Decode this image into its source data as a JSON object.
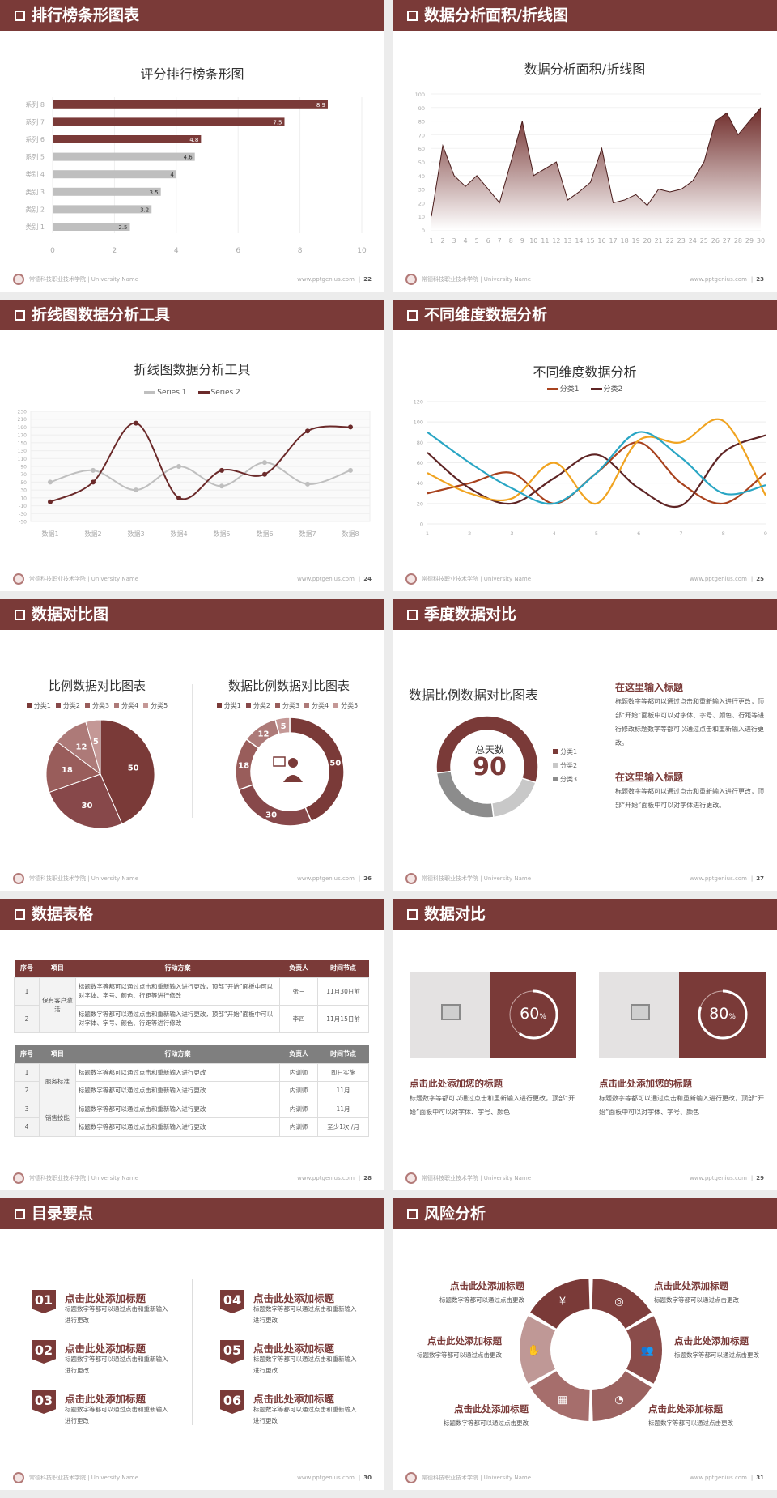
{
  "footer": {
    "school": "常德科技职业技术学院 | University Name",
    "site": "www.pptgenius.com",
    "sep": "|"
  },
  "colors": {
    "primary": "#7a3a38",
    "gray": "#bfbfbf",
    "light_gray": "#e4e2e2"
  },
  "slides": [
    {
      "title": "排行榜条形图表",
      "page": "22"
    },
    {
      "title": "数据分析面积/折线图",
      "page": "23"
    },
    {
      "title": "折线图数据分析工具",
      "page": "24"
    },
    {
      "title": "不同维度数据分析",
      "page": "25"
    },
    {
      "title": "数据对比图",
      "page": "26",
      "person_icon": "presenter-icon"
    },
    {
      "title": "季度数据对比",
      "page": "27",
      "center_label": "总天数",
      "center_value": "90",
      "blocks": [
        {
          "heading": "在这里输入标题",
          "text": "标题数字等都可以通过点击和重新输入进行更改，顶部“开始”面板中可以对字体、字号、颜色、行距等进行修改标题数字等都可以通过点击和重新输入进行更改。"
        },
        {
          "heading": "在这里输入标题",
          "text": "标题数字等都可以通过点击和重新输入进行更改，顶部“开始”面板中可以对字体进行更改。"
        }
      ]
    },
    {
      "title": "数据表格",
      "page": "28",
      "table1": {
        "headers": [
          "序号",
          "项目",
          "行动方案",
          "负责人",
          "时间节点"
        ],
        "rows": [
          [
            "1",
            "保有客户激活",
            "标题数字等都可以通过点击和重新输入进行更改，顶部“开始”面板中可以对字体、字号、颜色、行距等进行修改",
            "张三",
            "11月30日前"
          ],
          [
            "2",
            "保有客户激活",
            "标题数字等都可以通过点击和重新输入进行更改，顶部“开始”面板中可以对字体、字号、颜色、行距等进行修改",
            "李四",
            "11月15日前"
          ]
        ]
      },
      "table2": {
        "headers": [
          "序号",
          "项目",
          "行动方案",
          "负责人",
          "时间节点"
        ],
        "rows": [
          [
            "1",
            "服务标准",
            "标题数字等都可以通过点击和重新输入进行更改",
            "内训师",
            "即日实施"
          ],
          [
            "2",
            "服务标准",
            "标题数字等都可以通过点击和重新输入进行更改",
            "内训师",
            "11月"
          ],
          [
            "3",
            "销售技能",
            "标题数字等都可以通过点击和重新输入进行更改",
            "内训师",
            "11月"
          ],
          [
            "4",
            "销售技能",
            "标题数字等都可以通过点击和重新输入进行更改",
            "内训师",
            "至少1次 /月"
          ]
        ]
      }
    },
    {
      "title": "数据对比",
      "page": "29",
      "cards": [
        {
          "percent": 60,
          "value": "60",
          "unit": "%",
          "heading": "点击此处添加您的标题",
          "text": "标题数字等都可以通过点击和重新输入进行更改，顶部“开始”面板中可以对字体、字号、颜色",
          "icon": "add-image-icon"
        },
        {
          "percent": 80,
          "value": "80",
          "unit": "%",
          "heading": "点击此处添加您的标题",
          "text": "标题数字等都可以通过点击和重新输入进行更改，顶部“开始”面板中可以对字体、字号、颜色",
          "icon": "add-image-icon"
        }
      ]
    },
    {
      "title": "目录要点",
      "page": "30",
      "items": [
        {
          "num": "01",
          "heading": "点击此处添加标题",
          "text": "标题数字等都可以通过点击和重新输入进行更改"
        },
        {
          "num": "02",
          "heading": "点击此处添加标题",
          "text": "标题数字等都可以通过点击和重新输入进行更改"
        },
        {
          "num": "03",
          "heading": "点击此处添加标题",
          "text": "标题数字等都可以通过点击和重新输入进行更改"
        },
        {
          "num": "04",
          "heading": "点击此处添加标题",
          "text": "标题数字等都可以通过点击和重新输入进行更改"
        },
        {
          "num": "05",
          "heading": "点击此处添加标题",
          "text": "标题数字等都可以通过点击和重新输入进行更改"
        },
        {
          "num": "06",
          "heading": "点击此处添加标题",
          "text": "标题数字等都可以通过点击和重新输入进行更改"
        }
      ]
    },
    {
      "title": "风险分析",
      "page": "31",
      "items": [
        {
          "heading": "点击此处添加标题",
          "text": "标题数字等都可以通过点击更改",
          "icon": "money-bag-icon"
        },
        {
          "heading": "点击此处添加标题",
          "text": "标题数字等都可以通过点击更改",
          "icon": "coins-icon"
        },
        {
          "heading": "点击此处添加标题",
          "text": "标题数字等都可以通过点击更改",
          "icon": "users-icon"
        },
        {
          "heading": "点击此处添加标题",
          "text": "标题数字等都可以通过点击更改",
          "icon": "pie-chart-icon"
        },
        {
          "heading": "点击此处添加标题",
          "text": "标题数字等都可以通过点击更改",
          "icon": "building-icon"
        },
        {
          "heading": "点击此处添加标题",
          "text": "标题数字等都可以通过点击更改",
          "icon": "hand-money-icon"
        }
      ]
    }
  ],
  "chart_data": [
    {
      "type": "bar",
      "orientation": "horizontal",
      "title": "评分排行榜条形图",
      "categories": [
        "类别 1",
        "类别 2",
        "类别 3",
        "类别 4",
        "系列 5",
        "系列 6",
        "系列 7",
        "系列 8"
      ],
      "values": [
        2.5,
        3.2,
        3.5,
        4,
        4.6,
        4.8,
        7.5,
        8.9
      ],
      "colors": [
        "#bfbfbf",
        "#bfbfbf",
        "#bfbfbf",
        "#bfbfbf",
        "#bfbfbf",
        "#7a3a38",
        "#7a3a38",
        "#7a3a38"
      ],
      "xlim": [
        0,
        10
      ],
      "xticks": [
        0,
        2,
        4,
        6,
        8,
        10
      ],
      "grid": true
    },
    {
      "type": "area",
      "title": "数据分析面积/折线图",
      "x": [
        1,
        2,
        3,
        4,
        5,
        6,
        7,
        8,
        9,
        10,
        11,
        12,
        13,
        14,
        15,
        16,
        17,
        18,
        19,
        20,
        21,
        22,
        23,
        24,
        25,
        26,
        27,
        28,
        29,
        30
      ],
      "values": [
        10,
        62,
        40,
        32,
        40,
        30,
        20,
        50,
        80,
        40,
        45,
        50,
        22,
        28,
        35,
        60,
        20,
        22,
        26,
        18,
        30,
        28,
        30,
        36,
        50,
        80,
        86,
        70,
        80,
        90
      ],
      "ylim": [
        0,
        100
      ],
      "yticks": [
        0,
        10,
        20,
        30,
        40,
        50,
        60,
        70,
        80,
        90,
        100
      ],
      "color": "#7a3a38",
      "grid": true
    },
    {
      "type": "line",
      "smooth": true,
      "title": "折线图数据分析工具",
      "categories": [
        "数据1",
        "数据2",
        "数据3",
        "数据4",
        "数据5",
        "数据6",
        "数据7",
        "数据8"
      ],
      "series": [
        {
          "name": "Series 1",
          "values": [
            50,
            80,
            30,
            90,
            40,
            100,
            45,
            80
          ],
          "color": "#bfbfbf"
        },
        {
          "name": "Series 2",
          "values": [
            0,
            50,
            200,
            10,
            80,
            70,
            180,
            190
          ],
          "color": "#6b2a2a"
        }
      ],
      "ylim": [
        -50,
        230
      ],
      "yticks": [
        -50,
        -30,
        -10,
        10,
        30,
        50,
        70,
        90,
        110,
        130,
        150,
        170,
        190,
        210,
        230
      ],
      "legend": "top",
      "grid": true
    },
    {
      "type": "line",
      "smooth": true,
      "title": "不同维度数据分析",
      "categories": [
        "1",
        "2",
        "3",
        "4",
        "5",
        "6",
        "7",
        "8",
        "9"
      ],
      "series": [
        {
          "name": "分类1",
          "values": [
            30,
            40,
            50,
            20,
            50,
            80,
            40,
            20,
            50
          ],
          "color": "#a8421e"
        },
        {
          "name": "分类2",
          "values": [
            70,
            35,
            20,
            45,
            68,
            35,
            18,
            70,
            87
          ],
          "color": "#5e2424"
        },
        {
          "values": [
            50,
            30,
            25,
            60,
            20,
            82,
            80,
            101,
            28
          ],
          "color": "#f0a320"
        },
        {
          "values": [
            90,
            60,
            35,
            20,
            50,
            90,
            65,
            30,
            38
          ],
          "color": "#2aa6c4"
        }
      ],
      "ylim": [
        0,
        120
      ],
      "yticks": [
        0,
        20,
        40,
        60,
        80,
        100,
        120
      ],
      "legend": "top",
      "grid": true
    },
    {
      "type": "pie",
      "title": "比例数据对比图表",
      "categories": [
        "分类1",
        "分类2",
        "分类3",
        "分类4",
        "分类5"
      ],
      "values": [
        50,
        30,
        18,
        12,
        5
      ],
      "colors": [
        "#7a3a38",
        "#87484a",
        "#995d5b",
        "#ad7a78",
        "#c49896"
      ],
      "legend": "top"
    },
    {
      "type": "donut",
      "title": "数据比例数据对比图表",
      "categories": [
        "分类1",
        "分类2",
        "分类3",
        "分类4",
        "分类5"
      ],
      "values": [
        50,
        30,
        18,
        12,
        5
      ],
      "colors": [
        "#7a3a38",
        "#87484a",
        "#995d5b",
        "#ad7a78",
        "#c49896"
      ],
      "legend": "top"
    },
    {
      "type": "donut",
      "title": "数据比例数据对比图表",
      "categories": [
        "分类1",
        "分类2",
        "分类3"
      ],
      "values": [
        57,
        18,
        25
      ],
      "colors": [
        "#7a3a38",
        "#c8c8c8",
        "#8c8c8c"
      ],
      "legend": "right"
    }
  ]
}
